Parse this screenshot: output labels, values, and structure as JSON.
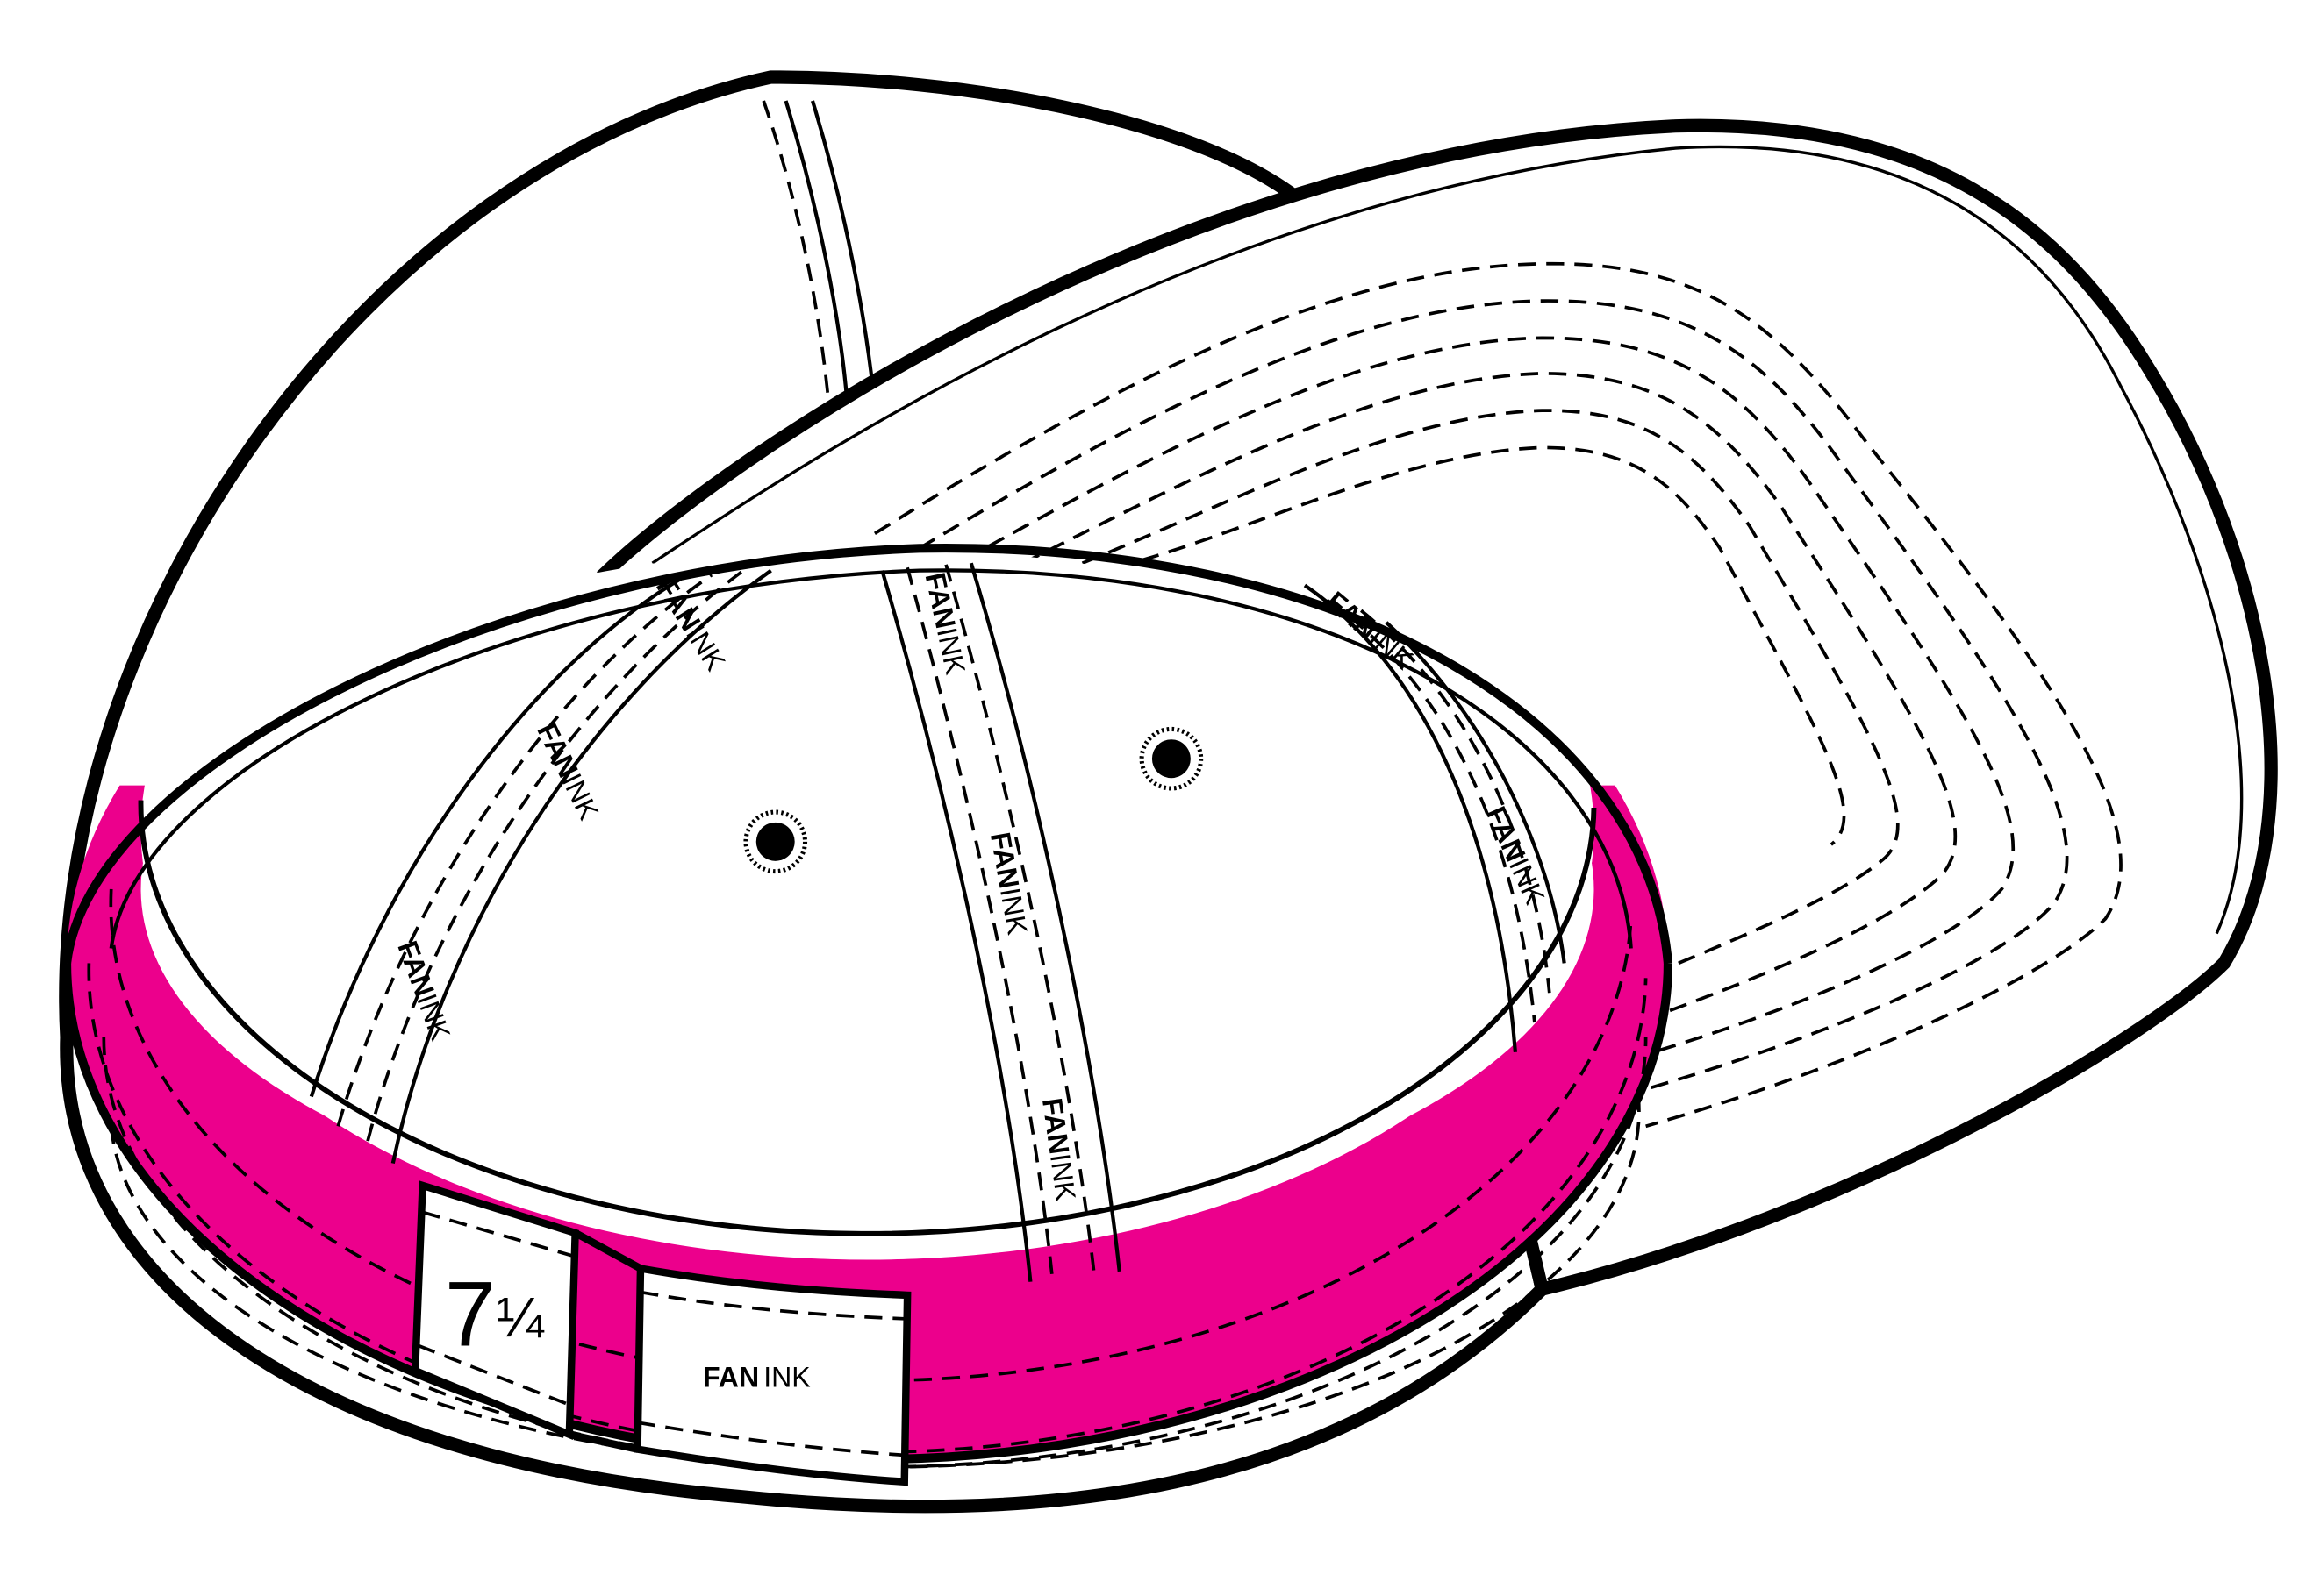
{
  "brand": {
    "bold": "FAN",
    "light": "INK"
  },
  "size_label": {
    "whole": "7",
    "fraction": "¼"
  },
  "colors": {
    "band": "#EC008C",
    "outline": "#000000",
    "fill": "#FFFFFF"
  }
}
